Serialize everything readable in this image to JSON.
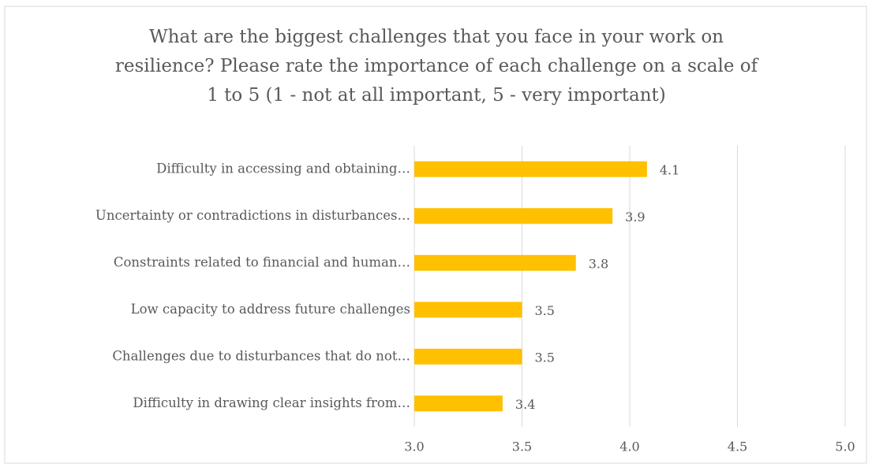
{
  "chart_data": {
    "type": "bar",
    "orientation": "horizontal",
    "title": [
      "What are the biggest challenges that you face in your work on",
      "resilience? Please rate the importance of each challenge on a scale of",
      "1 to 5 (1 - not at all important, 5 - very important)"
    ],
    "categories": [
      "Difficulty in accessing and obtaining…",
      "Uncertainty or contradictions in disturbances…",
      "Constraints related to financial and human…",
      "Low capacity to address future challenges",
      "Challenges due to disturbances that do not…",
      "Difficulty in drawing clear insights from…"
    ],
    "values": [
      4.08,
      3.92,
      3.75,
      3.5,
      3.5,
      3.41
    ],
    "value_labels": [
      "4.1",
      "3.9",
      "3.8",
      "3.5",
      "3.5",
      "3.4"
    ],
    "color": "#ffc000",
    "xlim": [
      3,
      5
    ],
    "xticks": [
      {
        "value": 3,
        "label": "3.0"
      },
      {
        "value": 3.5,
        "label": "3.5"
      },
      {
        "value": 4,
        "label": "4.0"
      },
      {
        "value": 4.5,
        "label": "4.5"
      },
      {
        "value": 5,
        "label": "5.0"
      }
    ],
    "grid": true
  }
}
